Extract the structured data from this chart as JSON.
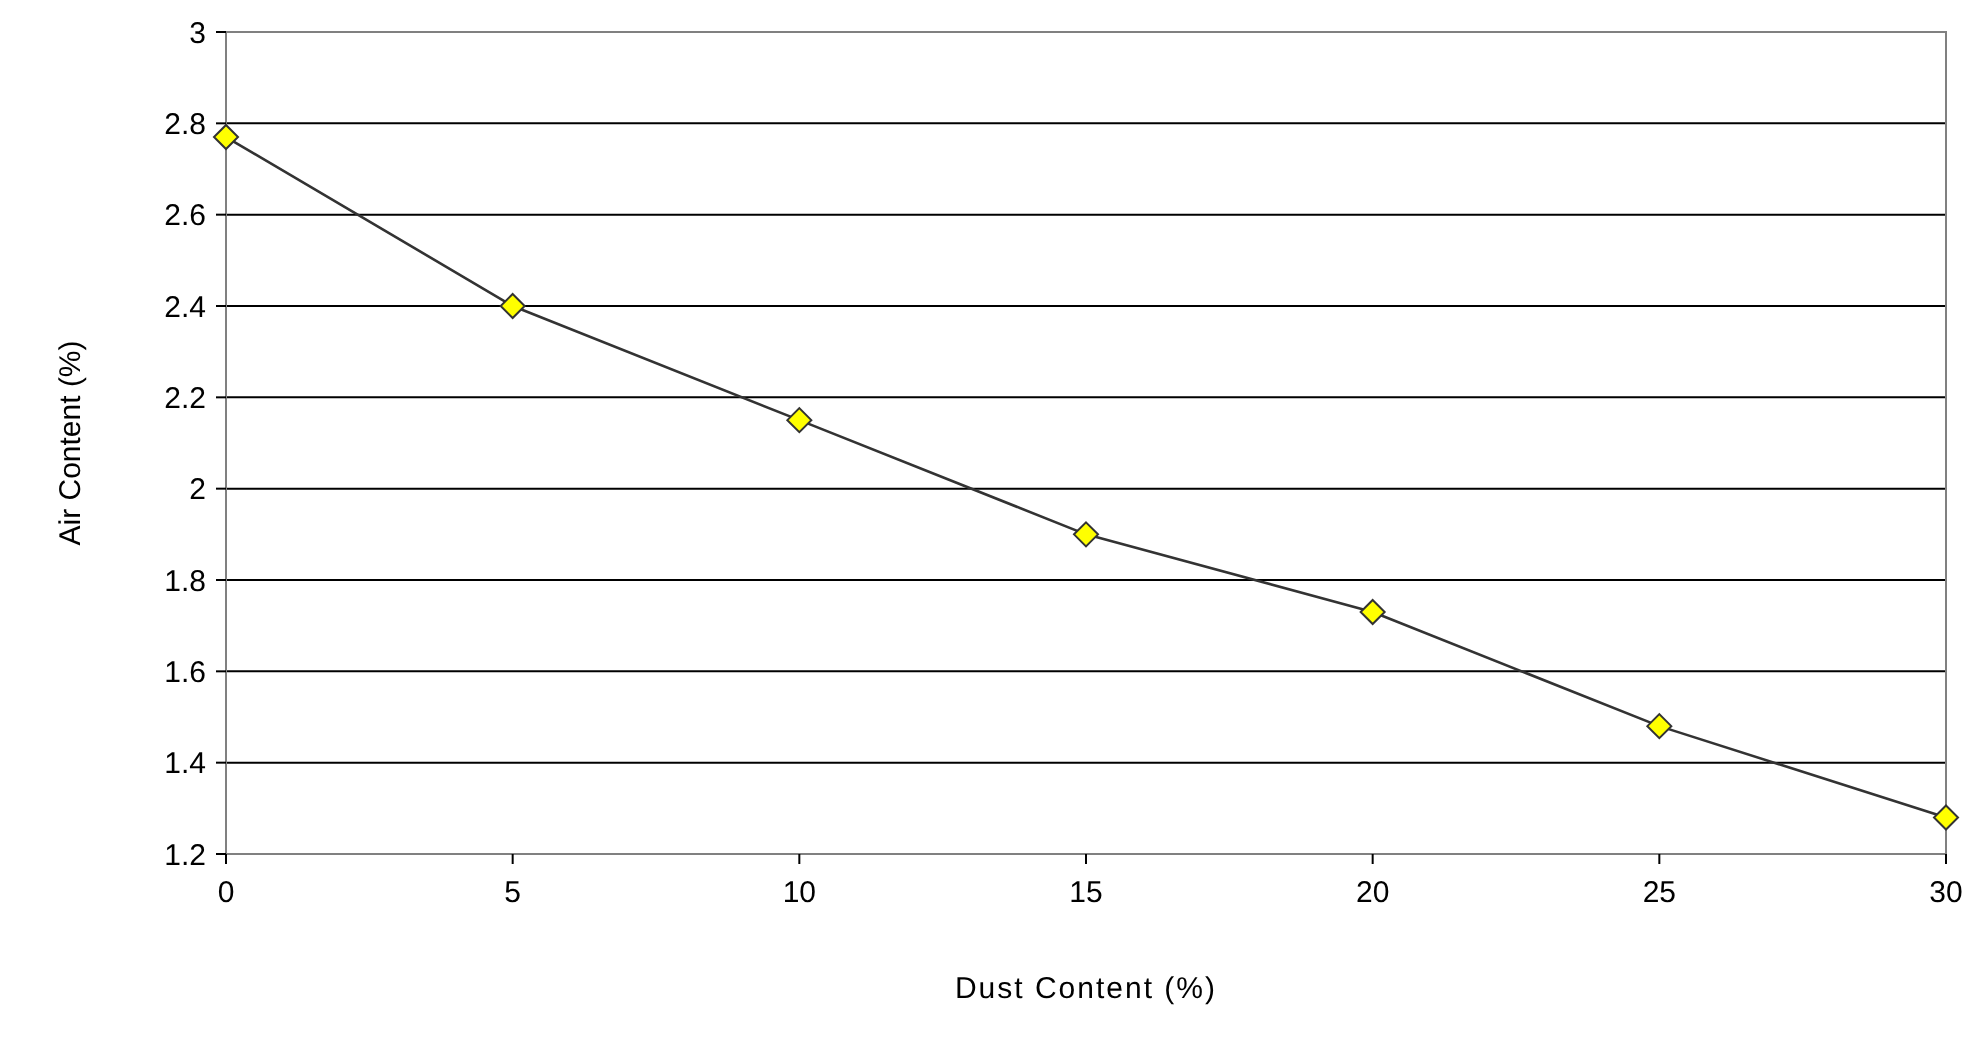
{
  "chart_data": {
    "type": "line",
    "xlabel": "Dust Content (%)",
    "ylabel": "Air Content (%)",
    "x": [
      0,
      5,
      10,
      15,
      20,
      25,
      30
    ],
    "series": [
      {
        "color": "#ffff00",
        "values": [
          2.77,
          2.4,
          2.15,
          1.9,
          1.73,
          1.48,
          1.28
        ]
      }
    ],
    "xlim": [
      0,
      30
    ],
    "xticks": [
      0,
      5,
      10,
      15,
      20,
      25,
      30
    ],
    "ylim": [
      1.2,
      3
    ],
    "yticks": [
      1.2,
      1.4,
      1.6,
      1.8,
      2,
      2.2,
      2.4,
      2.6,
      2.8,
      3
    ],
    "grid": "y",
    "marker": "diamond",
    "line_style": "solid"
  }
}
